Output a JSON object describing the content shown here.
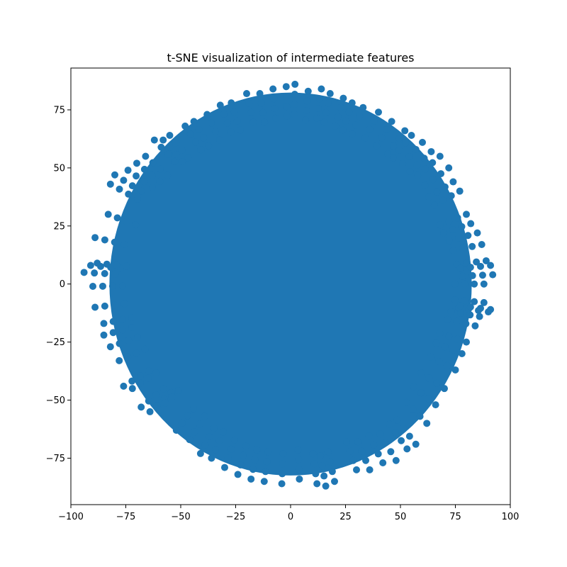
{
  "chart_data": {
    "type": "scatter",
    "title": "t-SNE visualization of intermediate features",
    "xlabel": "",
    "ylabel": "",
    "xlim": [
      -100,
      100
    ],
    "ylim": [
      -95,
      93
    ],
    "x_ticks": [
      -100,
      -75,
      -50,
      -25,
      0,
      25,
      50,
      75,
      100
    ],
    "y_ticks": [
      -75,
      -50,
      -25,
      0,
      25,
      50,
      75
    ],
    "x_tick_labels": [
      "−100",
      "−75",
      "−50",
      "−25",
      "0",
      "25",
      "50",
      "75",
      "100"
    ],
    "y_tick_labels": [
      "−75",
      "−50",
      "−25",
      "0",
      "25",
      "50",
      "75"
    ],
    "grid": false,
    "legend": "none",
    "marker_color": "#1f77b4",
    "distribution": {
      "shape": "near-circular cloud",
      "center": [
        0,
        0
      ],
      "approx_radius": 85,
      "approx_extent_x": [
        -94,
        93
      ],
      "approx_extent_y": [
        -87,
        87
      ]
    },
    "series": [
      {
        "points": [
          [
            -94,
            5
          ],
          [
            -91,
            8
          ],
          [
            -90,
            -1
          ],
          [
            -89,
            20
          ],
          [
            -89,
            -10
          ],
          [
            -88,
            9
          ],
          [
            -85,
            -17
          ],
          [
            -85,
            -22
          ],
          [
            -83,
            30
          ],
          [
            -82,
            43
          ],
          [
            -82,
            -27
          ],
          [
            -80,
            47
          ],
          [
            -78,
            -33
          ],
          [
            -76,
            -44
          ],
          [
            -74,
            49
          ],
          [
            -72,
            -45
          ],
          [
            -70,
            52
          ],
          [
            -68,
            -53
          ],
          [
            -66,
            55
          ],
          [
            -64,
            -55
          ],
          [
            -62,
            62
          ],
          [
            -60,
            -54
          ],
          [
            -58,
            62
          ],
          [
            -55,
            64
          ],
          [
            -52,
            -63
          ],
          [
            -48,
            68
          ],
          [
            -46,
            -67
          ],
          [
            -44,
            70
          ],
          [
            -41,
            -73
          ],
          [
            -38,
            73
          ],
          [
            -36,
            -75
          ],
          [
            -32,
            77
          ],
          [
            -30,
            -79
          ],
          [
            -27,
            78
          ],
          [
            -24,
            -82
          ],
          [
            -20,
            82
          ],
          [
            -18,
            -84
          ],
          [
            -14,
            82
          ],
          [
            -12,
            -85
          ],
          [
            -8,
            84
          ],
          [
            -4,
            -86
          ],
          [
            -2,
            85
          ],
          [
            2,
            86
          ],
          [
            4,
            -84
          ],
          [
            8,
            83
          ],
          [
            12,
            -86
          ],
          [
            14,
            84
          ],
          [
            16,
            -87
          ],
          [
            18,
            82
          ],
          [
            20,
            -85
          ],
          [
            24,
            80
          ],
          [
            28,
            78
          ],
          [
            30,
            -80
          ],
          [
            33,
            76
          ],
          [
            36,
            -80
          ],
          [
            40,
            74
          ],
          [
            42,
            -77
          ],
          [
            46,
            70
          ],
          [
            48,
            -76
          ],
          [
            52,
            66
          ],
          [
            53,
            -71
          ],
          [
            55,
            64
          ],
          [
            57,
            -69
          ],
          [
            60,
            61
          ],
          [
            62,
            -60
          ],
          [
            64,
            57
          ],
          [
            66,
            -52
          ],
          [
            68,
            55
          ],
          [
            70,
            -45
          ],
          [
            72,
            50
          ],
          [
            74,
            44
          ],
          [
            75,
            -37
          ],
          [
            77,
            40
          ],
          [
            78,
            -30
          ],
          [
            80,
            30
          ],
          [
            80,
            -25
          ],
          [
            82,
            26
          ],
          [
            84,
            -18
          ],
          [
            85,
            22
          ],
          [
            86,
            -14
          ],
          [
            87,
            17
          ],
          [
            88,
            -8
          ],
          [
            89,
            10
          ],
          [
            90,
            -12
          ],
          [
            91,
            8
          ],
          [
            92,
            4
          ],
          [
            91,
            -11
          ],
          [
            88,
            0
          ]
        ]
      }
    ]
  }
}
